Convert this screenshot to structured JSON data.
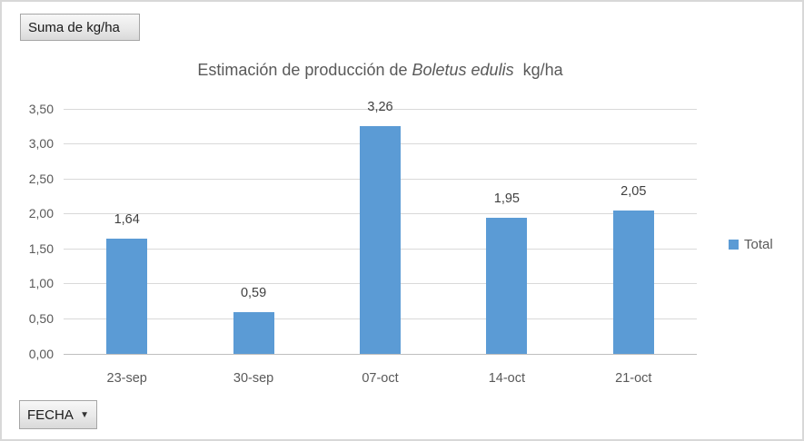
{
  "pivot_buttons": {
    "value_field": {
      "label": "Suma de kg/ha"
    },
    "axis_field": {
      "label": "FECHA",
      "arrow": "▼"
    }
  },
  "chart_data": {
    "type": "bar",
    "title_prefix": "Estimación de producción de ",
    "title_species": "Boletus edulis",
    "title_suffix": "  kg/ha",
    "title_full": "Estimación de producción de Boletus edulis  kg/ha",
    "categories": [
      "23-sep",
      "30-sep",
      "07-oct",
      "14-oct",
      "21-oct"
    ],
    "series": [
      {
        "name": "Total",
        "values": [
          1.64,
          0.59,
          3.26,
          1.95,
          2.05
        ]
      }
    ],
    "data_labels": [
      "1,64",
      "0,59",
      "3,26",
      "1,95",
      "2,05"
    ],
    "y_tick_values": [
      0,
      0.5,
      1,
      1.5,
      2,
      2.5,
      3,
      3.5
    ],
    "y_tick_labels": [
      "0,00",
      "0,50",
      "1,00",
      "1,50",
      "2,00",
      "2,50",
      "3,00",
      "3,50"
    ],
    "ylim": [
      0,
      3.5
    ],
    "grid": true,
    "legend": {
      "label": "Total",
      "position": "right",
      "marker_color": "#5B9BD5"
    },
    "bar_color": "#5B9BD5",
    "xlabel": "",
    "ylabel": ""
  },
  "colors": {
    "bar": "#5B9BD5",
    "gridline": "#D9D9D9",
    "axis_line": "#BFBFBF",
    "axis_text": "#595959",
    "data_label_text": "#404040",
    "title_text": "#595959",
    "window_border": "#D8D8D8"
  }
}
